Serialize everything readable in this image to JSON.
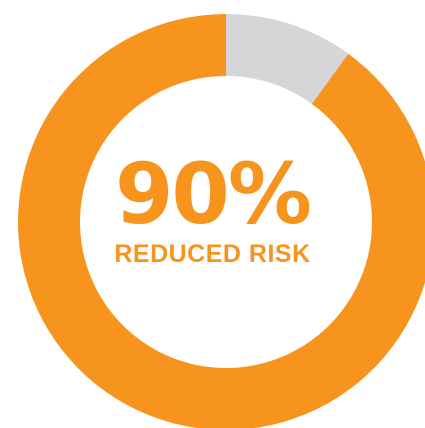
{
  "chart_data": {
    "type": "pie",
    "style": "donut",
    "slices": [
      {
        "label": "",
        "value": 90,
        "color": "#F7941D"
      },
      {
        "label": "",
        "value": 10,
        "color": "#D6D6D8"
      }
    ],
    "center_value": "90%",
    "center_label": "REDUCED RISK"
  },
  "colors": {
    "accent": "#F7941D",
    "track": "#D6D6D8"
  }
}
